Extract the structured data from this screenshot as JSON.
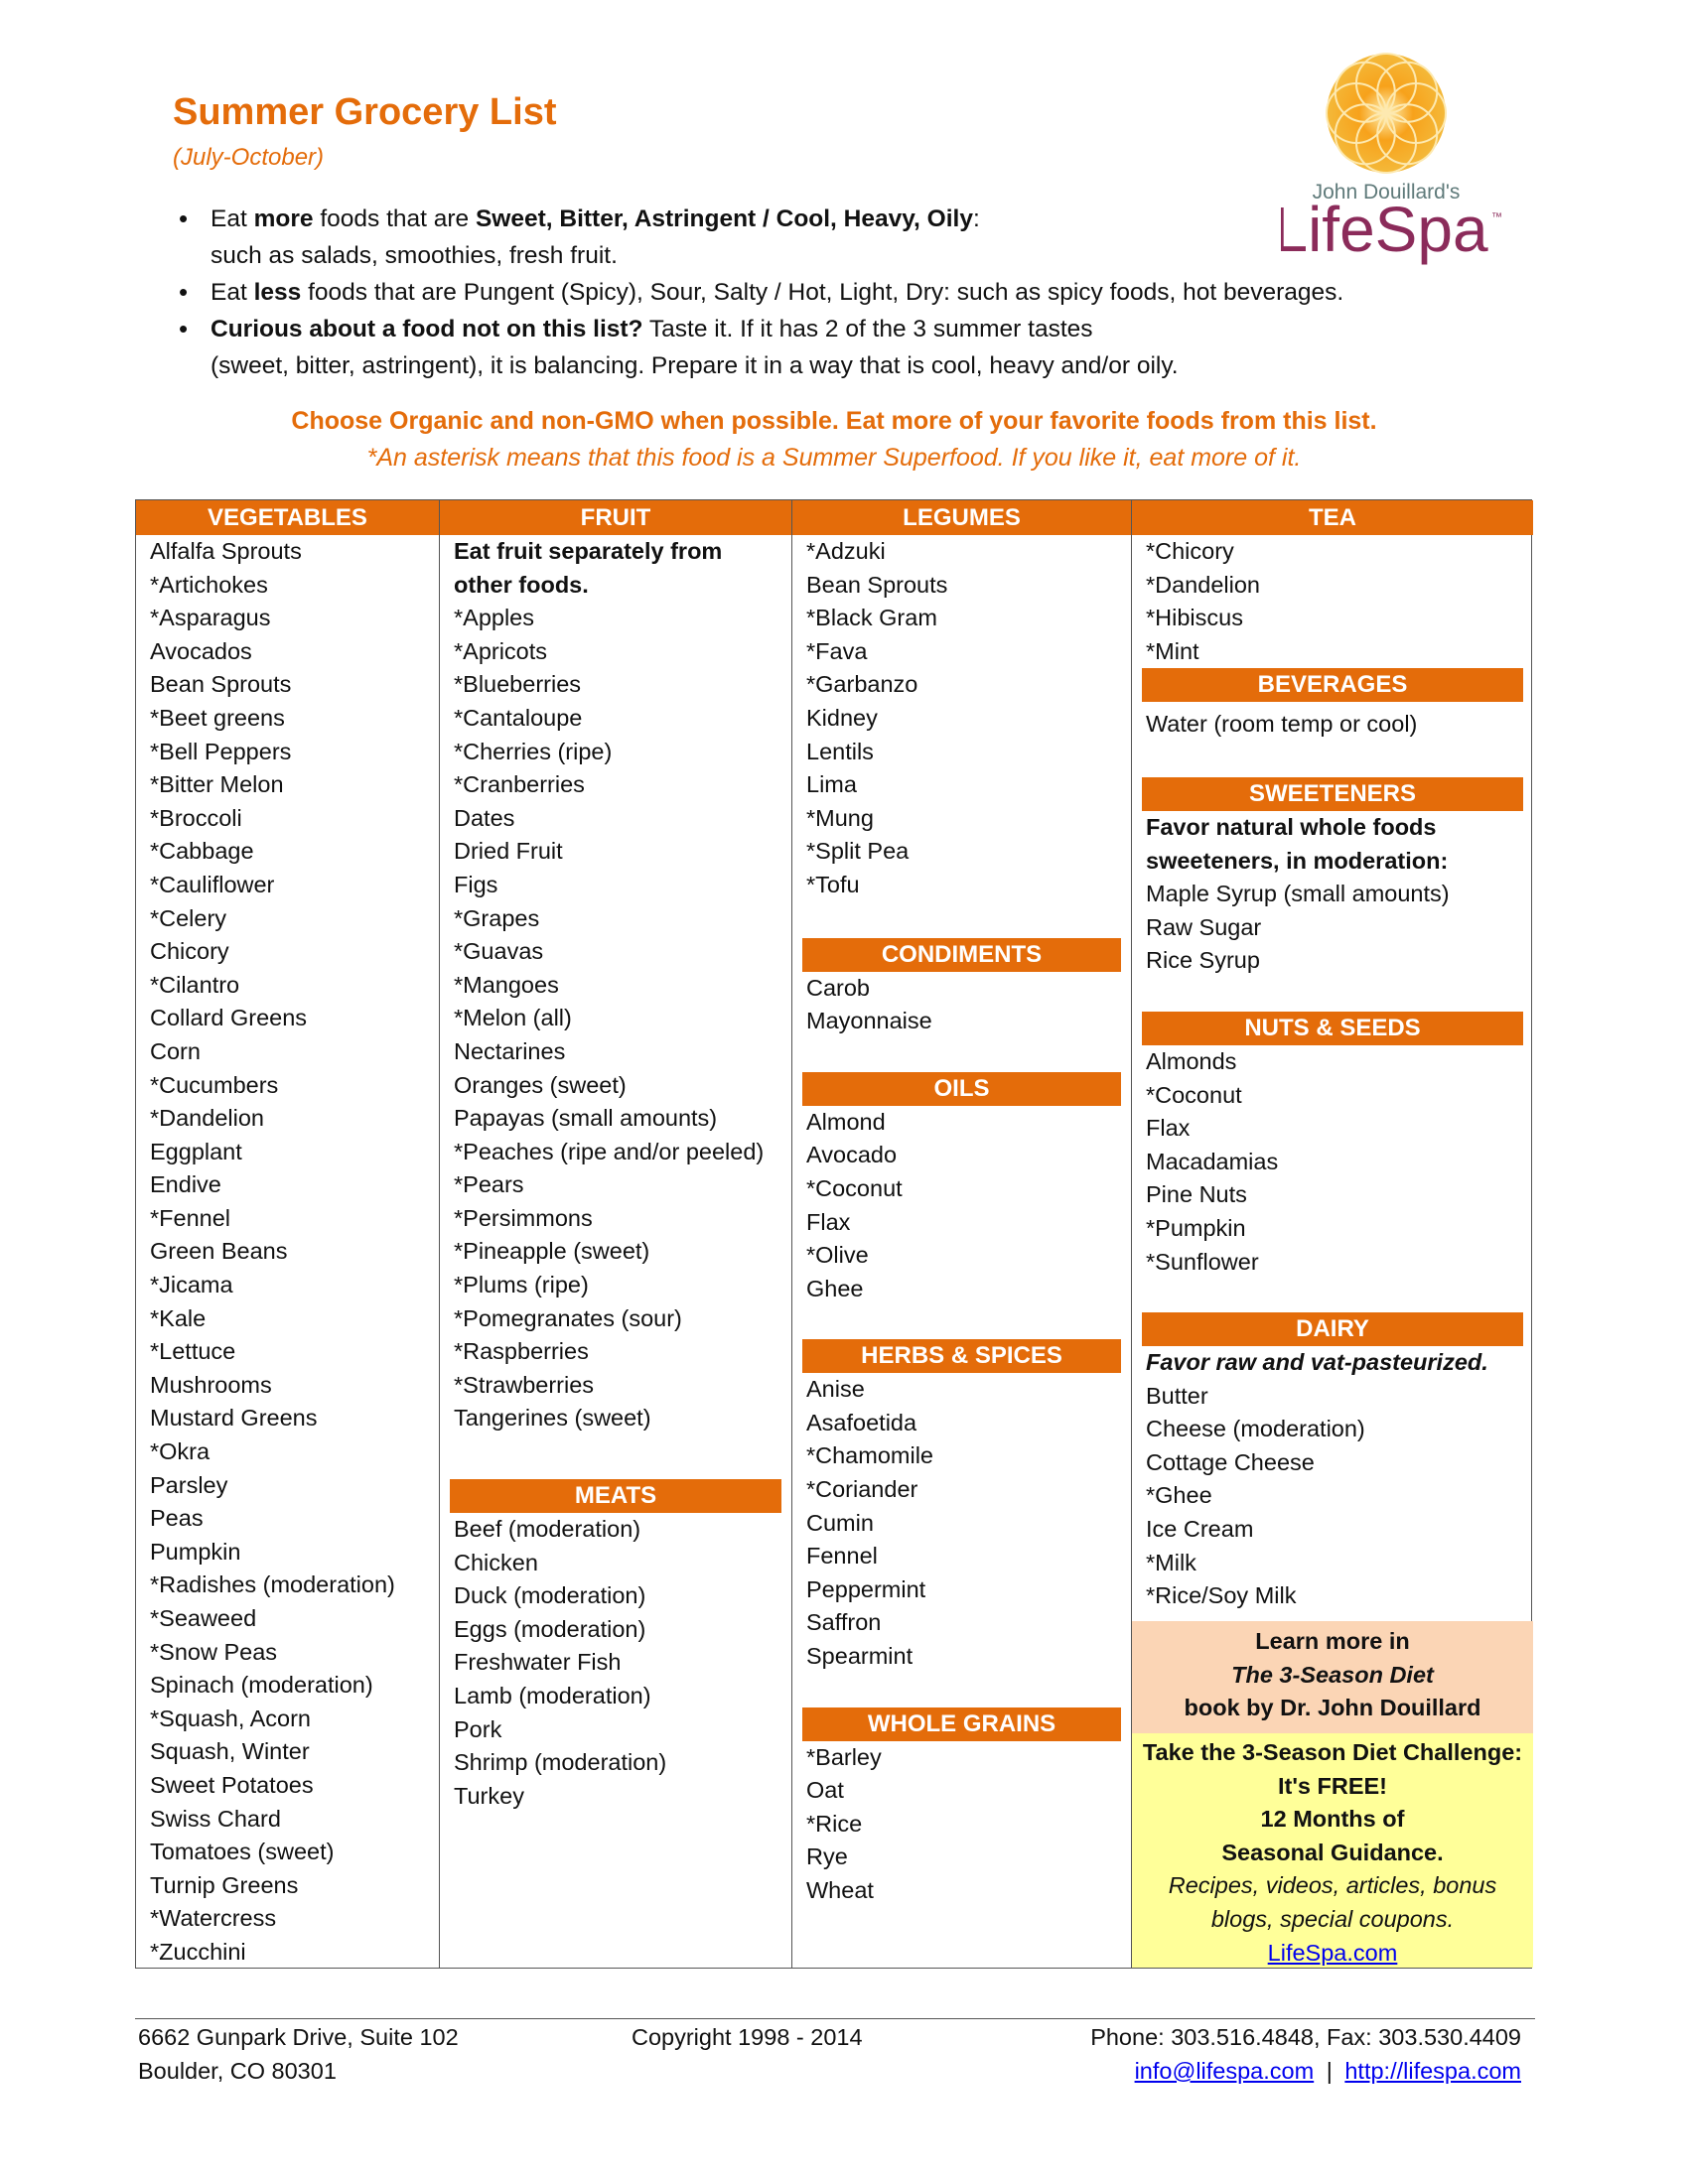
{
  "header": {
    "title": "Summer Grocery List",
    "subtitle": "(July-October)"
  },
  "logo": {
    "byline": "John Douillard's",
    "brand": "LifeSpa",
    "tm": "™",
    "colors": {
      "flower": "#f39a1e",
      "brand": "#8b2b5a"
    }
  },
  "bullets": [
    {
      "a": "Eat ",
      "b": "more",
      "c": " foods that are ",
      "d": "Sweet, Bitter, Astringent / Cool, Heavy, Oily",
      ":": ":",
      "line2": "such as salads, smoothies, fresh fruit."
    },
    {
      "a": "Eat ",
      "b": "less",
      "c": " foods that are Pungent (Spicy), Sour, Salty / Hot, Light, Dry:  such as spicy foods, hot beverages."
    },
    {
      "b": "Curious about a food not on this list?",
      "c": " Taste it. If it has 2 of the 3 summer tastes",
      "line2": "(sweet, bitter, astringent), it is balancing. Prepare it in a way that is cool, heavy and/or oily."
    }
  ],
  "notice": "Choose Organic and non-GMO when possible. Eat more of your favorite foods from this list.",
  "notice2": "*An asterisk means that this food is a Summer Superfood. If you like it, eat more of it.",
  "accent": "#e46c0a",
  "columns": [
    {
      "sections": [
        {
          "title": "VEGETABLES",
          "items": [
            "Alfalfa Sprouts",
            "*Artichokes",
            "*Asparagus",
            "Avocados",
            "Bean Sprouts",
            "*Beet greens",
            "*Bell Peppers",
            "*Bitter Melon",
            "*Broccoli",
            "*Cabbage",
            "*Cauliflower",
            "*Celery",
            "Chicory",
            "*Cilantro",
            "Collard Greens",
            "Corn",
            "*Cucumbers",
            "*Dandelion",
            "Eggplant",
            "Endive",
            "*Fennel",
            "Green Beans",
            "*Jicama",
            "*Kale",
            "*Lettuce",
            "Mushrooms",
            "Mustard Greens",
            "*Okra",
            "Parsley",
            "Peas",
            "Pumpkin",
            "*Radishes (moderation)",
            "*Seaweed",
            "*Snow Peas",
            "Spinach (moderation)",
            "*Squash, Acorn",
            "Squash, Winter",
            "Sweet Potatoes",
            "Swiss Chard",
            "Tomatoes (sweet)",
            "Turnip Greens",
            "*Watercress",
            "*Zucchini"
          ]
        }
      ]
    },
    {
      "sections": [
        {
          "title": "FRUIT",
          "note": "Eat fruit separately from other foods.",
          "items": [
            "*Apples",
            "*Apricots",
            "*Blueberries",
            "*Cantaloupe",
            "*Cherries (ripe)",
            "*Cranberries",
            "Dates",
            "Dried Fruit",
            "Figs",
            "*Grapes",
            "*Guavas",
            "*Mangoes",
            "*Melon (all)",
            "Nectarines",
            "Oranges (sweet)",
            "Papayas (small amounts)",
            "*Peaches (ripe and/or peeled)",
            "*Pears",
            "*Persimmons",
            "*Pineapple (sweet)",
            "*Plums (ripe)",
            "*Pomegranates (sour)",
            "*Raspberries",
            "*Strawberries",
            "Tangerines (sweet)"
          ]
        },
        {
          "title": "MEATS",
          "items": [
            "Beef (moderation)",
            "Chicken",
            "Duck (moderation)",
            "Eggs (moderation)",
            "Freshwater Fish",
            "Lamb (moderation)",
            "Pork",
            "Shrimp (moderation)",
            "Turkey"
          ]
        }
      ]
    },
    {
      "sections": [
        {
          "title": "LEGUMES",
          "items": [
            "*Adzuki",
            "Bean Sprouts",
            "*Black Gram",
            "*Fava",
            "*Garbanzo",
            "Kidney",
            "Lentils",
            "Lima",
            "*Mung",
            "*Split Pea",
            "*Tofu"
          ]
        },
        {
          "title": "CONDIMENTS",
          "items": [
            "Carob",
            "Mayonnaise"
          ]
        },
        {
          "title": "OILS",
          "items": [
            "Almond",
            "Avocado",
            "*Coconut",
            "Flax",
            "*Olive",
            "Ghee"
          ]
        },
        {
          "title": "HERBS & SPICES",
          "items": [
            "Anise",
            "Asafoetida",
            "*Chamomile",
            "*Coriander",
            "Cumin",
            "Fennel",
            "Peppermint",
            "Saffron",
            "Spearmint"
          ]
        },
        {
          "title": "WHOLE GRAINS",
          "items": [
            "*Barley",
            "Oat",
            "*Rice",
            "Rye",
            "Wheat"
          ]
        }
      ]
    },
    {
      "sections": [
        {
          "title": "TEA",
          "items": [
            "*Chicory",
            "*Dandelion",
            "*Hibiscus",
            "*Mint"
          ]
        },
        {
          "title": "BEVERAGES",
          "items": [
            "Water (room temp or cool)"
          ]
        },
        {
          "title": "SWEETENERS",
          "note": "Favor natural whole foods sweeteners, in moderation:",
          "items": [
            "Maple Syrup (small amounts)",
            "Raw Sugar",
            "Rice Syrup"
          ]
        },
        {
          "title": "NUTS & SEEDS",
          "items": [
            "Almonds",
            "*Coconut",
            "Flax",
            "Macadamias",
            "Pine Nuts",
            "*Pumpkin",
            "*Sunflower"
          ]
        },
        {
          "title": "DAIRY",
          "note_italic": "Favor raw and vat-pasteurized.",
          "items": [
            "Butter",
            "Cheese (moderation)",
            "Cottage Cheese",
            "*Ghee",
            "Ice Cream",
            "*Milk",
            "*Rice/Soy Milk"
          ]
        }
      ]
    }
  ],
  "promo": {
    "l1": "Learn more in",
    "l2": "The 3-Season Diet",
    "l3": "book by Dr. John Douillard",
    "c1": "Take the 3-Season Diet Challenge:",
    "c2": "It's FREE!",
    "c3": "12 Months of",
    "c4": "Seasonal Guidance.",
    "c5": "Recipes, videos, articles, bonus",
    "c6": "blogs, special coupons.",
    "link": "LifeSpa.com",
    "colors": {
      "peach": "#fbd5b5",
      "yellow": "#ffff99"
    }
  },
  "footer": {
    "addr1": "6662 Gunpark Drive, Suite 102",
    "addr2": "Boulder, CO 80301",
    "copyright": "Copyright 1998 - 2014",
    "phone": "Phone:  303.516.4848, Fax: 303.530.4409",
    "email": "info@lifespa.com",
    "sep": "|",
    "web": "http://lifespa.com"
  }
}
